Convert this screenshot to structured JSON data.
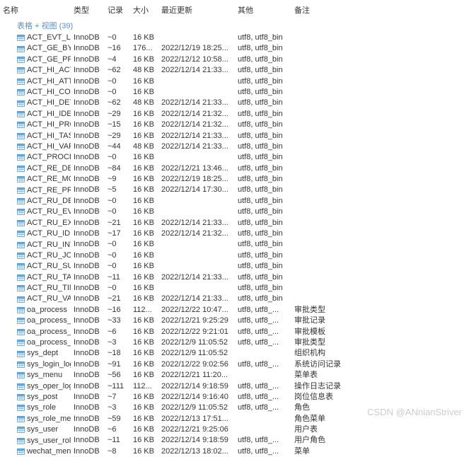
{
  "columns": {
    "name": "名称",
    "type": "类型",
    "records": "记录",
    "size": "大小",
    "updated": "最近更新",
    "other": "其他",
    "remark": "备注"
  },
  "group_header": "表格 + 视图 (39)",
  "watermark": "CSDN @ANnianStriver",
  "icon_color_fill": "#6db5e8",
  "icon_color_border": "#4a8fc9",
  "rows": [
    {
      "name": "ACT_EVT_LOG",
      "type": "InnoDB",
      "records": "~0",
      "size": "16 KB",
      "updated": "",
      "other": "utf8, utf8_bin",
      "remark": ""
    },
    {
      "name": "ACT_GE_BYTEAR...",
      "type": "InnoDB",
      "records": "~16",
      "size": "176...",
      "updated": "2022/12/19 18:25...",
      "other": "utf8, utf8_bin",
      "remark": ""
    },
    {
      "name": "ACT_GE_PROPER...",
      "type": "InnoDB",
      "records": "~4",
      "size": "16 KB",
      "updated": "2022/12/12 10:58...",
      "other": "utf8, utf8_bin",
      "remark": ""
    },
    {
      "name": "ACT_HI_ACTINST",
      "type": "InnoDB",
      "records": "~62",
      "size": "48 KB",
      "updated": "2022/12/14 21:33...",
      "other": "utf8, utf8_bin",
      "remark": ""
    },
    {
      "name": "ACT_HI_ATTACH...",
      "type": "InnoDB",
      "records": "~0",
      "size": "16 KB",
      "updated": "",
      "other": "utf8, utf8_bin",
      "remark": ""
    },
    {
      "name": "ACT_HI_COMMENT",
      "type": "InnoDB",
      "records": "~0",
      "size": "16 KB",
      "updated": "",
      "other": "utf8, utf8_bin",
      "remark": ""
    },
    {
      "name": "ACT_HI_DETAIL",
      "type": "InnoDB",
      "records": "~62",
      "size": "48 KB",
      "updated": "2022/12/14 21:33...",
      "other": "utf8, utf8_bin",
      "remark": ""
    },
    {
      "name": "ACT_HI_IDENTIT...",
      "type": "InnoDB",
      "records": "~29",
      "size": "16 KB",
      "updated": "2022/12/14 21:32...",
      "other": "utf8, utf8_bin",
      "remark": ""
    },
    {
      "name": "ACT_HI_PROCINST",
      "type": "InnoDB",
      "records": "~15",
      "size": "16 KB",
      "updated": "2022/12/14 21:32...",
      "other": "utf8, utf8_bin",
      "remark": ""
    },
    {
      "name": "ACT_HI_TASKINST",
      "type": "InnoDB",
      "records": "~29",
      "size": "16 KB",
      "updated": "2022/12/14 21:33...",
      "other": "utf8, utf8_bin",
      "remark": ""
    },
    {
      "name": "ACT_HI_VARINST",
      "type": "InnoDB",
      "records": "~44",
      "size": "48 KB",
      "updated": "2022/12/14 21:33...",
      "other": "utf8, utf8_bin",
      "remark": ""
    },
    {
      "name": "ACT_PROCDEF_I...",
      "type": "InnoDB",
      "records": "~0",
      "size": "16 KB",
      "updated": "",
      "other": "utf8, utf8_bin",
      "remark": ""
    },
    {
      "name": "ACT_RE_DEPLOY...",
      "type": "InnoDB",
      "records": "~84",
      "size": "16 KB",
      "updated": "2022/12/21 13:46...",
      "other": "utf8, utf8_bin",
      "remark": ""
    },
    {
      "name": "ACT_RE_MODEL",
      "type": "InnoDB",
      "records": "~9",
      "size": "16 KB",
      "updated": "2022/12/19 18:25...",
      "other": "utf8, utf8_bin",
      "remark": ""
    },
    {
      "name": "ACT_RE_PROCDEF",
      "type": "InnoDB",
      "records": "~5",
      "size": "16 KB",
      "updated": "2022/12/14 17:30...",
      "other": "utf8, utf8_bin",
      "remark": ""
    },
    {
      "name": "ACT_RU_DEADLE...",
      "type": "InnoDB",
      "records": "~0",
      "size": "16 KB",
      "updated": "",
      "other": "utf8, utf8_bin",
      "remark": ""
    },
    {
      "name": "ACT_RU_EVENT_...",
      "type": "InnoDB",
      "records": "~0",
      "size": "16 KB",
      "updated": "",
      "other": "utf8, utf8_bin",
      "remark": ""
    },
    {
      "name": "ACT_RU_EXECUTI...",
      "type": "InnoDB",
      "records": "~21",
      "size": "16 KB",
      "updated": "2022/12/14 21:33...",
      "other": "utf8, utf8_bin",
      "remark": ""
    },
    {
      "name": "ACT_RU_IDENTIT...",
      "type": "InnoDB",
      "records": "~17",
      "size": "16 KB",
      "updated": "2022/12/14 21:32...",
      "other": "utf8, utf8_bin",
      "remark": ""
    },
    {
      "name": "ACT_RU_INTEGR...",
      "type": "InnoDB",
      "records": "~0",
      "size": "16 KB",
      "updated": "",
      "other": "utf8, utf8_bin",
      "remark": ""
    },
    {
      "name": "ACT_RU_JOB",
      "type": "InnoDB",
      "records": "~0",
      "size": "16 KB",
      "updated": "",
      "other": "utf8, utf8_bin",
      "remark": ""
    },
    {
      "name": "ACT_RU_SUSPEN...",
      "type": "InnoDB",
      "records": "~0",
      "size": "16 KB",
      "updated": "",
      "other": "utf8, utf8_bin",
      "remark": ""
    },
    {
      "name": "ACT_RU_TASK",
      "type": "InnoDB",
      "records": "~11",
      "size": "16 KB",
      "updated": "2022/12/14 21:33...",
      "other": "utf8, utf8_bin",
      "remark": ""
    },
    {
      "name": "ACT_RU_TIMER_...",
      "type": "InnoDB",
      "records": "~0",
      "size": "16 KB",
      "updated": "",
      "other": "utf8, utf8_bin",
      "remark": ""
    },
    {
      "name": "ACT_RU_VARIABLE",
      "type": "InnoDB",
      "records": "~21",
      "size": "16 KB",
      "updated": "2022/12/14 21:33...",
      "other": "utf8, utf8_bin",
      "remark": ""
    },
    {
      "name": "oa_process",
      "type": "InnoDB",
      "records": "~16",
      "size": "112...",
      "updated": "2022/12/22 10:47...",
      "other": "utf8, utf8_...",
      "remark": "审批类型"
    },
    {
      "name": "oa_process_record",
      "type": "InnoDB",
      "records": "~33",
      "size": "16 KB",
      "updated": "2022/12/21 9:25:29",
      "other": "utf8, utf8_...",
      "remark": "审批记录"
    },
    {
      "name": "oa_process_temp...",
      "type": "InnoDB",
      "records": "~6",
      "size": "16 KB",
      "updated": "2022/12/22 9:21:01",
      "other": "utf8, utf8_...",
      "remark": "审批模板"
    },
    {
      "name": "oa_process_type",
      "type": "InnoDB",
      "records": "~3",
      "size": "16 KB",
      "updated": "2022/12/9 11:05:52",
      "other": "utf8, utf8_...",
      "remark": "审批类型"
    },
    {
      "name": "sys_dept",
      "type": "InnoDB",
      "records": "~18",
      "size": "16 KB",
      "updated": "2022/12/9 11:05:52",
      "other": "",
      "remark": "组织机构"
    },
    {
      "name": "sys_login_log",
      "type": "InnoDB",
      "records": "~91",
      "size": "16 KB",
      "updated": "2022/12/22 9:02:56",
      "other": "utf8, utf8_...",
      "remark": "系统访问记录"
    },
    {
      "name": "sys_menu",
      "type": "InnoDB",
      "records": "~56",
      "size": "16 KB",
      "updated": "2022/12/21 11:20...",
      "other": "",
      "remark": "菜单表"
    },
    {
      "name": "sys_oper_log",
      "type": "InnoDB",
      "records": "~111",
      "size": "112...",
      "updated": "2022/12/14 9:18:59",
      "other": "utf8, utf8_...",
      "remark": "操作日志记录"
    },
    {
      "name": "sys_post",
      "type": "InnoDB",
      "records": "~7",
      "size": "16 KB",
      "updated": "2022/12/14 9:16:40",
      "other": "utf8, utf8_...",
      "remark": "岗位信息表"
    },
    {
      "name": "sys_role",
      "type": "InnoDB",
      "records": "~3",
      "size": "16 KB",
      "updated": "2022/12/9 11:05:52",
      "other": "utf8, utf8_...",
      "remark": "角色"
    },
    {
      "name": "sys_role_menu",
      "type": "InnoDB",
      "records": "~59",
      "size": "16 KB",
      "updated": "2022/12/13 17:51...",
      "other": "",
      "remark": "角色菜单"
    },
    {
      "name": "sys_user",
      "type": "InnoDB",
      "records": "~6",
      "size": "16 KB",
      "updated": "2022/12/21 9:25:06",
      "other": "",
      "remark": "用户表"
    },
    {
      "name": "sys_user_role",
      "type": "InnoDB",
      "records": "~11",
      "size": "16 KB",
      "updated": "2022/12/14 9:18:59",
      "other": "utf8, utf8_...",
      "remark": "用户角色"
    },
    {
      "name": "wechat_menu",
      "type": "InnoDB",
      "records": "~8",
      "size": "16 KB",
      "updated": "2022/12/13 18:02...",
      "other": "utf8, utf8_...",
      "remark": "菜单"
    }
  ]
}
